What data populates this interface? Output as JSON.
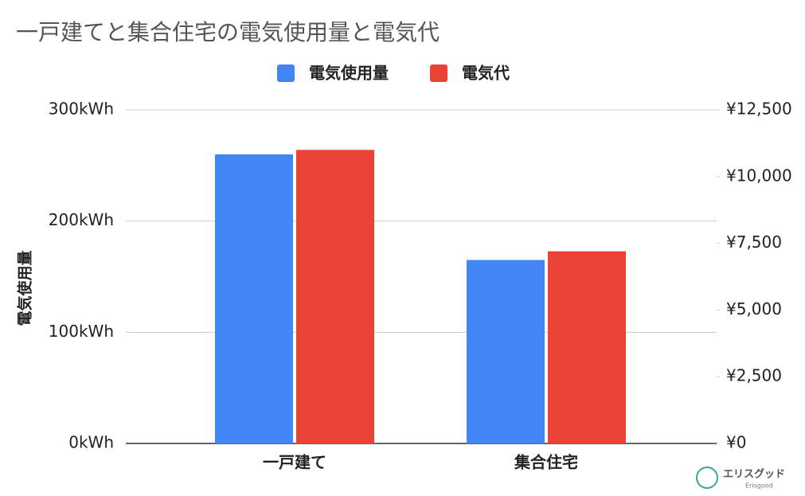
{
  "chart_data": {
    "type": "bar",
    "title": "一戸建てと集合住宅の電気使用量と電気代",
    "y_label": "電気使用量",
    "categories": [
      "一戸建て",
      "集合住宅"
    ],
    "series": [
      {
        "name": "電気使用量",
        "color": "#4285f4",
        "values": [
          260,
          165
        ]
      },
      {
        "name": "電気代",
        "color": "#ea4335",
        "values": [
          11000,
          7200
        ],
        "axis": "y2"
      }
    ],
    "ylim": [
      0,
      300
    ],
    "yticks": [
      {
        "value": 0,
        "label": "0kWh"
      },
      {
        "value": 100,
        "label": "100kWh"
      },
      {
        "value": 200,
        "label": "200kWh"
      },
      {
        "value": 300,
        "label": "300kWh"
      }
    ],
    "y2lim": [
      0,
      12500
    ],
    "y2ticks": [
      {
        "value": 0,
        "label": "¥0"
      },
      {
        "value": 2500,
        "label": "¥2,500"
      },
      {
        "value": 5000,
        "label": "¥5,000"
      },
      {
        "value": 7500,
        "label": "¥7,500"
      },
      {
        "value": 10000,
        "label": "¥10,000"
      },
      {
        "value": 12500,
        "label": "¥12,500"
      }
    ],
    "grid": true,
    "legend": "top"
  },
  "watermark": {
    "name": "エリスグッド",
    "sub": "Erisgood"
  }
}
